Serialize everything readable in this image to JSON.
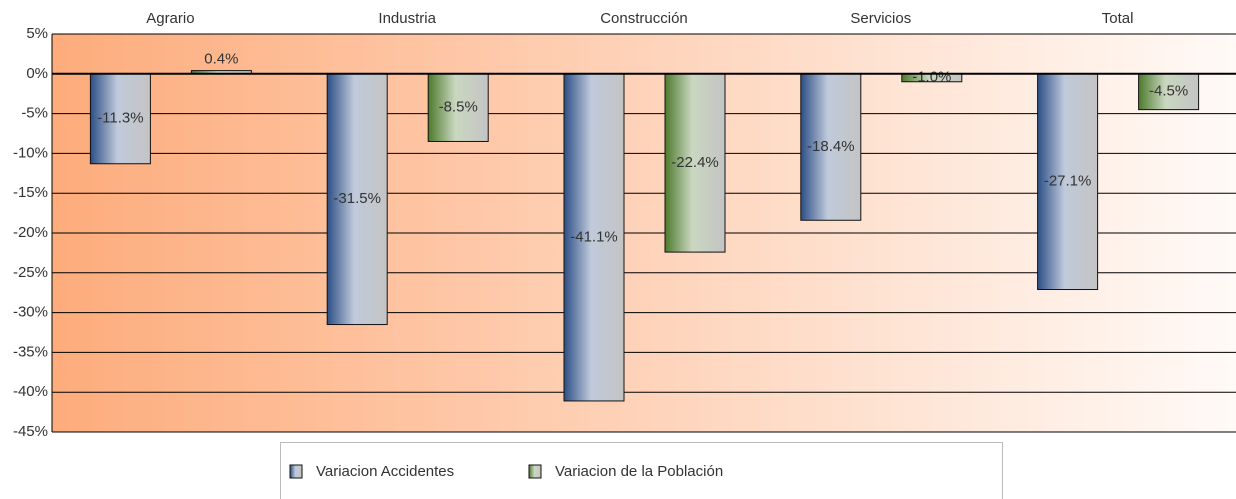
{
  "chart_data": {
    "type": "bar",
    "categories": [
      "Agrario",
      "Industria",
      "Construcción",
      "Servicios",
      "Total"
    ],
    "series": [
      {
        "name": "Variacion Accidentes",
        "color": "#2d4f86",
        "values": [
          -11.3,
          -31.5,
          -41.1,
          -18.4,
          -27.1
        ],
        "value_labels": [
          "-11.3%",
          "-31.5%",
          "-41.1%",
          "-18.4%",
          "-27.1%"
        ]
      },
      {
        "name": "Variacion de la Población",
        "color": "#4d7a2c",
        "values": [
          0.4,
          -8.5,
          -22.4,
          -1.0,
          -4.5
        ],
        "value_labels": [
          "0.4%",
          "-8.5%",
          "-22.4%",
          "-1.0%",
          "-4.5%"
        ]
      }
    ],
    "ylim": [
      -45,
      5
    ],
    "yticks": [
      {
        "value": 5,
        "label": "5%"
      },
      {
        "value": 0,
        "label": "0%"
      },
      {
        "value": -5,
        "label": "-5%"
      },
      {
        "value": -10,
        "label": "-10%"
      },
      {
        "value": -15,
        "label": "-15%"
      },
      {
        "value": -20,
        "label": "-20%"
      },
      {
        "value": -25,
        "label": "-25%"
      },
      {
        "value": -30,
        "label": "-30%"
      },
      {
        "value": -35,
        "label": "-35%"
      },
      {
        "value": -40,
        "label": "-40%"
      },
      {
        "value": -45,
        "label": "-45%"
      }
    ],
    "grid": true
  }
}
